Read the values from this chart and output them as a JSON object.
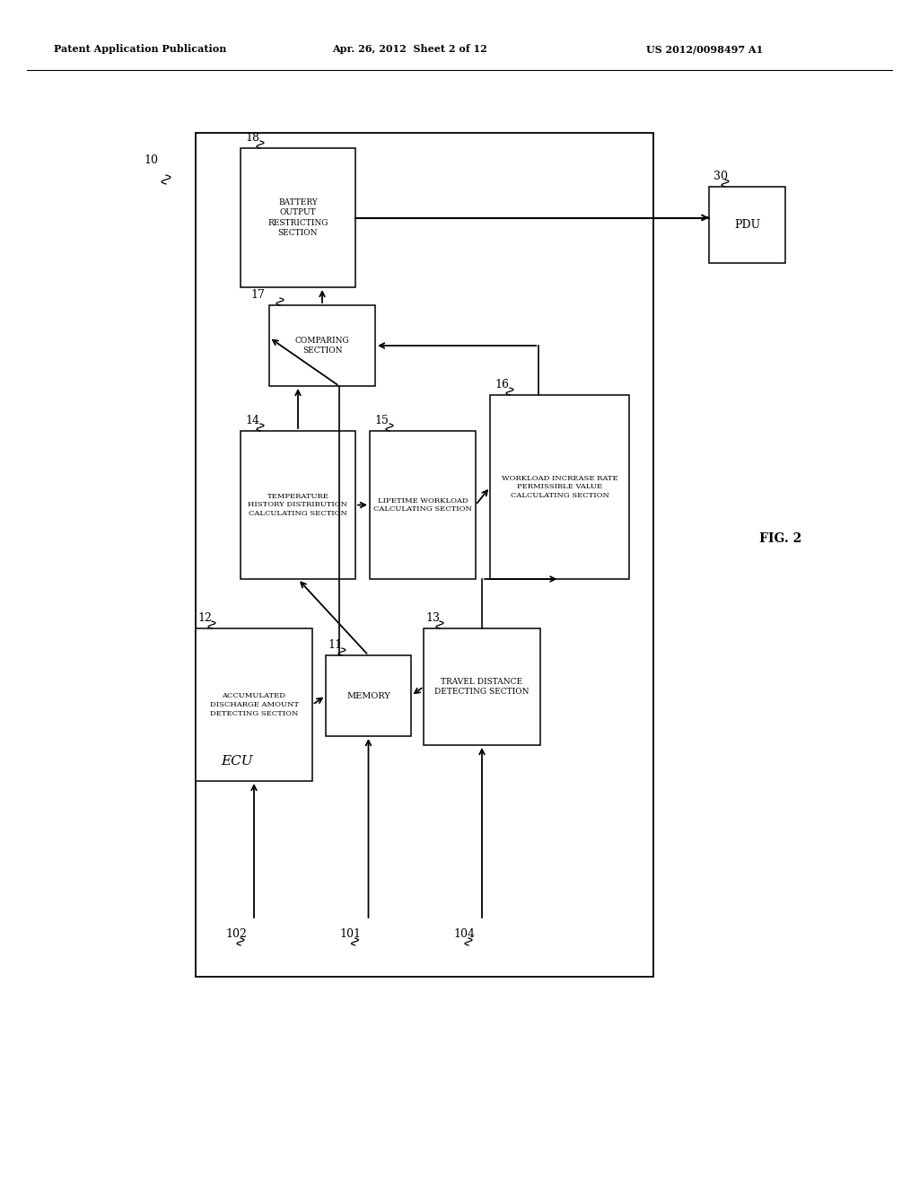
{
  "header_left": "Patent Application Publication",
  "header_mid": "Apr. 26, 2012  Sheet 2 of 12",
  "header_right": "US 2012/0098497 A1",
  "fig_label": "FIG. 2",
  "ecu_label": "ECU",
  "bg_color": "#ffffff",
  "boxes": {
    "battery": {
      "label": "BATTERY\nOUTPUT\nRESTRICTING\nSECTION",
      "id": "18"
    },
    "pdu": {
      "label": "PDU",
      "id": "30"
    },
    "comparing": {
      "label": "COMPARING\nSECTION",
      "id": "17"
    },
    "temp_hist": {
      "label": "TEMPERATURE\nHISTORY DISTRIBUTION\nCALCULATING SECTION",
      "id": "14"
    },
    "lifetime": {
      "label": "LIFETIME WORKLOAD\nCALCULATING SECTION",
      "id": "15"
    },
    "workload": {
      "label": "WORKLOAD INCREASE RATE\nPERMISSIBLE VALUE\nCALCULATING SECTION",
      "id": "16"
    },
    "accum": {
      "label": "ACCUMULATED\nDISCHARGE AMOUNT\nDETECTING SECTION",
      "id": "12"
    },
    "memory": {
      "label": "MEMORY",
      "id": "11"
    },
    "travel": {
      "label": "TRAVEL DISTANCE\nDETECTING SECTION",
      "id": "13"
    }
  },
  "outer_box_id": "10"
}
